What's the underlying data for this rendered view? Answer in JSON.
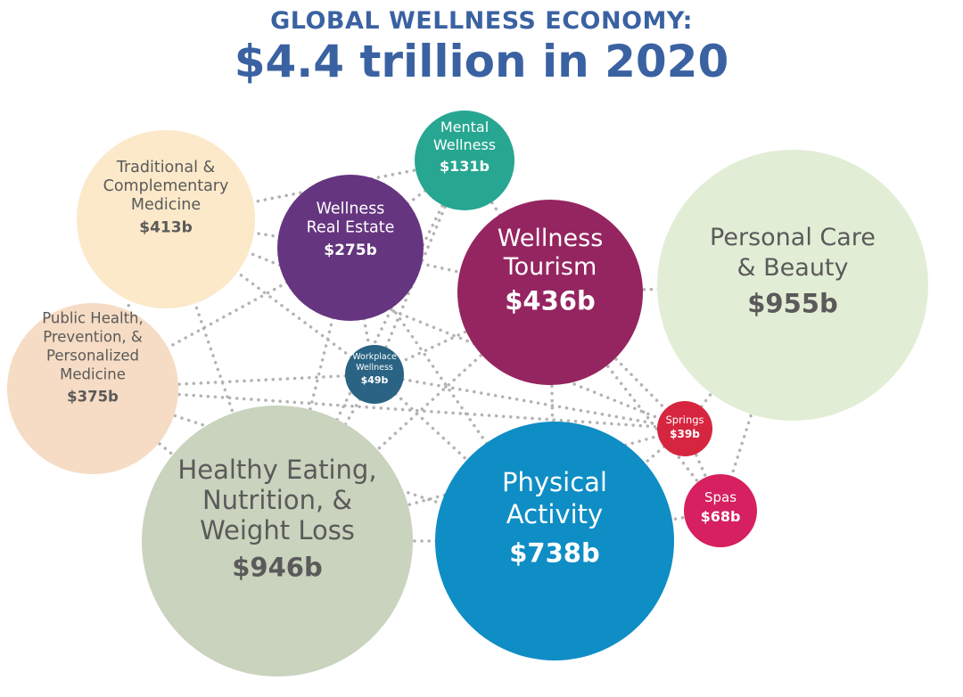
{
  "header": {
    "title": "GLOBAL WELLNESS ECONOMY:",
    "subtitle": "$4.4 trillion in 2020"
  },
  "colors": {
    "title": "#3a62a2",
    "connector": "#b3b3b3"
  },
  "chart_data": {
    "type": "bubble",
    "unit": "billion USD",
    "total_label": "$4.4 trillion in 2020",
    "series": [
      {
        "key": "traditional",
        "name": "Traditional & Complementary Medicine",
        "lines": [
          "Traditional &",
          "Complementary",
          "Medicine"
        ],
        "value_label": "$413b",
        "value": 413,
        "color": "#fbe9c9",
        "text_color": "#5a5a5a"
      },
      {
        "key": "real_estate",
        "name": "Wellness Real Estate",
        "lines": [
          "Wellness",
          "Real Estate"
        ],
        "value_label": "$275b",
        "value": 275,
        "color": "#65357f",
        "text_color": "#ffffff"
      },
      {
        "key": "mental",
        "name": "Mental Wellness",
        "lines": [
          "Mental",
          "Wellness"
        ],
        "value_label": "$131b",
        "value": 131,
        "color": "#27a691",
        "text_color": "#ffffff"
      },
      {
        "key": "tourism",
        "name": "Wellness Tourism",
        "lines": [
          "Wellness",
          "Tourism"
        ],
        "value_label": "$436b",
        "value": 436,
        "color": "#952560",
        "text_color": "#ffffff"
      },
      {
        "key": "personal_care",
        "name": "Personal Care & Beauty",
        "lines": [
          "Personal Care",
          "& Beauty"
        ],
        "value_label": "$955b",
        "value": 955,
        "color": "#e2edd5",
        "text_color": "#5a5a5a"
      },
      {
        "key": "public_health",
        "name": "Public Health, Prevention, & Personalized Medicine",
        "lines": [
          "Public Health,",
          "Prevention, &",
          "Personalized",
          "Medicine"
        ],
        "value_label": "$375b",
        "value": 375,
        "color": "#f6dcc4",
        "text_color": "#5a5a5a"
      },
      {
        "key": "workplace",
        "name": "Workplace Wellness",
        "lines": [
          "Workplace",
          "Wellness"
        ],
        "value_label": "$49b",
        "value": 49,
        "color": "#2a6383",
        "text_color": "#ffffff"
      },
      {
        "key": "springs",
        "name": "Springs",
        "lines": [
          "Springs"
        ],
        "value_label": "$39b",
        "value": 39,
        "color": "#d6263f",
        "text_color": "#ffffff"
      },
      {
        "key": "spas",
        "name": "Spas",
        "lines": [
          "Spas"
        ],
        "value_label": "$68b",
        "value": 68,
        "color": "#d6205f",
        "text_color": "#ffffff"
      },
      {
        "key": "healthy_eating",
        "name": "Healthy Eating, Nutrition, & Weight Loss",
        "lines": [
          "Healthy Eating,",
          "Nutrition, &",
          "Weight Loss"
        ],
        "value_label": "$946b",
        "value": 946,
        "color": "#c9d3bd",
        "text_color": "#5a5a5a"
      },
      {
        "key": "physical",
        "name": "Physical Activity",
        "lines": [
          "Physical",
          "Activity"
        ],
        "value_label": "$738b",
        "value": 738,
        "color": "#0f8dc5",
        "text_color": "#ffffff"
      }
    ]
  }
}
